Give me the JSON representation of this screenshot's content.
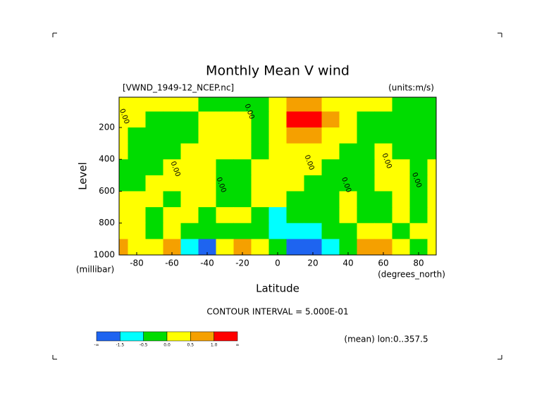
{
  "chart_data": {
    "type": "contour",
    "title": "Monthly Mean V wind",
    "subtitle_left": "[VWND_1949-12_NCEP.nc]",
    "subtitle_right": "(units:m/s)",
    "ylabel": "Level",
    "yunits": "(millibar)",
    "xlabel": "Latitude",
    "xunits": "(degrees_north)",
    "contour_interval": "CONTOUR INTERVAL = 5.000E-01",
    "note": "(mean) lon:0..357.5",
    "x": [
      -90,
      -80,
      -70,
      -60,
      -50,
      -40,
      -30,
      -20,
      -10,
      0,
      10,
      20,
      30,
      40,
      50,
      60,
      70,
      80,
      90
    ],
    "y": [
      50,
      150,
      250,
      350,
      450,
      550,
      650,
      750,
      850,
      950
    ],
    "z": [
      [
        0.25,
        0.25,
        0.25,
        0.25,
        0.25,
        -0.25,
        -0.25,
        -0.25,
        -0.25,
        0.25,
        0.75,
        0.75,
        0.25,
        0.25,
        0.25,
        0.25,
        -0.25,
        -0.25,
        -0.25
      ],
      [
        0.25,
        0.25,
        -0.25,
        -0.25,
        -0.25,
        0.25,
        0.25,
        0.25,
        -0.25,
        0.25,
        1.5,
        1.5,
        0.75,
        0.25,
        -0.25,
        -0.25,
        -0.25,
        -0.25,
        -0.25
      ],
      [
        0.25,
        -0.25,
        -0.25,
        -0.25,
        -0.25,
        0.25,
        0.25,
        0.25,
        -0.25,
        0.25,
        0.75,
        0.75,
        0.25,
        0.25,
        -0.25,
        -0.25,
        -0.25,
        -0.25,
        -0.25
      ],
      [
        0.25,
        -0.25,
        -0.25,
        -0.25,
        0.25,
        0.25,
        0.25,
        0.25,
        -0.25,
        0.25,
        0.25,
        0.25,
        0.25,
        -0.25,
        -0.25,
        0.25,
        -0.25,
        -0.25,
        -0.25
      ],
      [
        -0.25,
        -0.25,
        -0.25,
        0.25,
        0.25,
        0.25,
        -0.25,
        -0.25,
        0.25,
        0.25,
        0.25,
        0.25,
        -0.25,
        -0.25,
        -0.25,
        0.25,
        0.25,
        -0.25,
        0.25
      ],
      [
        -0.25,
        -0.25,
        0.25,
        0.25,
        0.25,
        0.25,
        -0.25,
        -0.25,
        0.25,
        0.25,
        0.25,
        -0.25,
        -0.25,
        -0.25,
        -0.25,
        0.25,
        0.25,
        -0.25,
        0.25
      ],
      [
        0.25,
        0.25,
        0.25,
        -0.25,
        0.25,
        0.25,
        -0.25,
        -0.25,
        0.25,
        0.25,
        -0.25,
        -0.25,
        -0.25,
        0.25,
        -0.25,
        -0.25,
        0.25,
        -0.25,
        0.25
      ],
      [
        0.25,
        0.25,
        -0.25,
        0.25,
        0.25,
        -0.25,
        0.25,
        0.25,
        -0.25,
        -1,
        -0.25,
        -0.25,
        -0.25,
        0.25,
        -0.25,
        -0.25,
        0.25,
        -0.25,
        0.25
      ],
      [
        0.25,
        0.25,
        -0.25,
        0.25,
        -0.25,
        -0.25,
        -0.25,
        -0.25,
        -0.25,
        -1,
        -1,
        -1,
        -0.25,
        -0.25,
        0.25,
        0.25,
        -0.25,
        0.25,
        0.25
      ],
      [
        0.75,
        0.25,
        0.25,
        0.75,
        -1,
        -2,
        0.25,
        0.75,
        0.25,
        -0.25,
        -2,
        -2,
        -1,
        -0.25,
        0.75,
        0.75,
        0.25,
        -0.25,
        0.25
      ]
    ],
    "xlim": [
      -90,
      90
    ],
    "ylim": [
      1000,
      10
    ],
    "xticks": [
      -80,
      -60,
      -40,
      -20,
      0,
      20,
      40,
      60,
      80
    ],
    "yticks": [
      200,
      400,
      600,
      800,
      1000
    ],
    "colors": [
      "#1e64f0",
      "#00ffff",
      "#00dc00",
      "#ffff00",
      "#f5a000",
      "#ff0000"
    ],
    "levels": [
      -1.5,
      -0.5,
      {
        "value": 0,
        "label": "0.0"
      },
      0.5,
      {
        "value": 1,
        "label": "1.0"
      }
    ],
    "colorbar_ends": [
      "-∞",
      "∞"
    ],
    "contour_labels": [
      {
        "label": "0.00",
        "x": -87,
        "y": 130
      },
      {
        "label": "0.00",
        "x": -58,
        "y": 460
      },
      {
        "label": "0.00",
        "x": -32,
        "y": 560
      },
      {
        "label": "0.00",
        "x": -16,
        "y": 100
      },
      {
        "label": "0.00",
        "x": 18,
        "y": 420
      },
      {
        "label": "0.00",
        "x": 39,
        "y": 560
      },
      {
        "label": "0.00",
        "x": 62,
        "y": 410
      },
      {
        "label": "0.00",
        "x": 79,
        "y": 530
      }
    ]
  }
}
